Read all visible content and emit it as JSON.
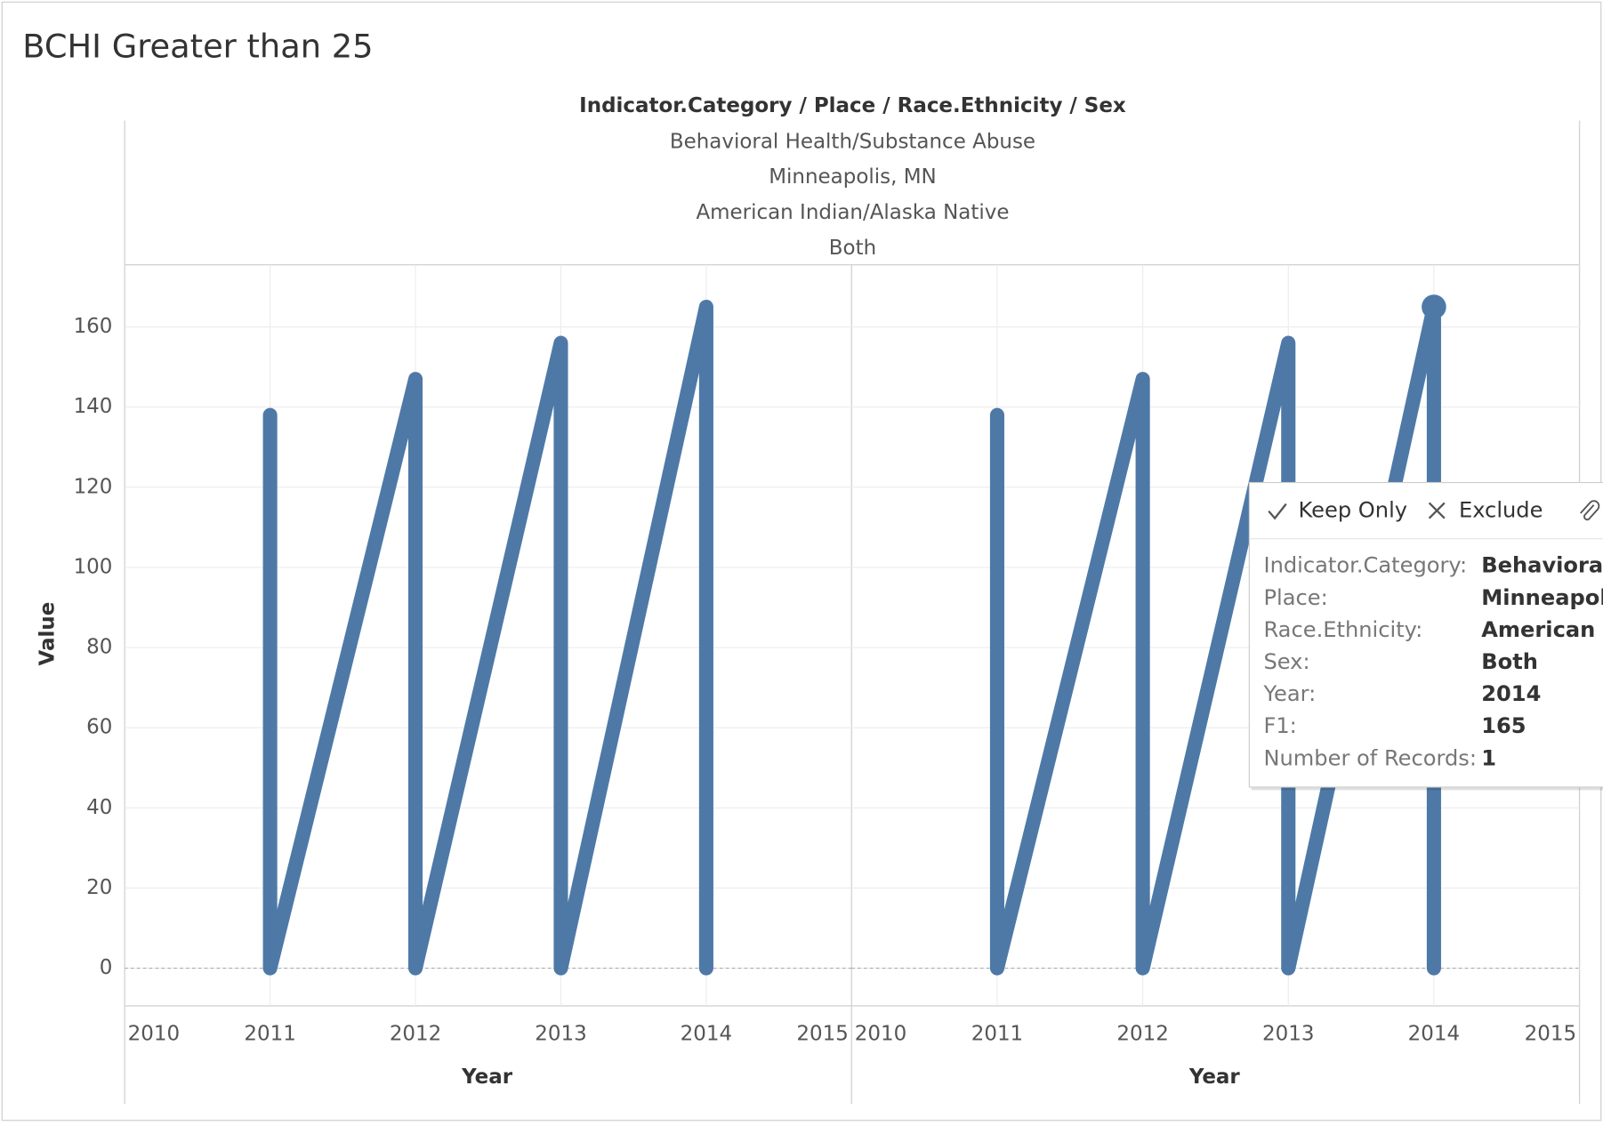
{
  "chart_data": {
    "type": "line",
    "title": "BCHI Greater than 25",
    "header_title": "Indicator.Category / Place / Race.Ethnicity / Sex",
    "header_values": [
      "Behavioral Health/Substance Abuse",
      "Minneapolis, MN",
      "American Indian/Alaska Native",
      "Both"
    ],
    "y_label": "Value",
    "x_label": "Year",
    "ylim": [
      -9.4,
      175.5
    ],
    "yticks": [
      0,
      20,
      40,
      60,
      80,
      100,
      120,
      140,
      160
    ],
    "xlim": [
      2010,
      2015
    ],
    "xticks": [
      2010,
      2011,
      2012,
      2013,
      2014,
      2015
    ],
    "grid": true,
    "zero_line": true,
    "color": "#4e79a7",
    "panels": [
      {
        "x": [
          2011,
          2011,
          2012,
          2012,
          2013,
          2013,
          2014,
          2014
        ],
        "values": [
          138,
          0,
          147,
          0,
          156,
          0,
          165,
          0
        ]
      },
      {
        "x": [
          2011,
          2011,
          2012,
          2012,
          2013,
          2013,
          2014,
          2014
        ],
        "values": [
          138,
          0,
          147,
          0,
          156,
          0,
          165,
          0
        ]
      }
    ]
  },
  "tooltip": {
    "actions": [
      "Keep Only",
      "Exclude"
    ],
    "rows": [
      {
        "label": "Indicator.Category:",
        "value": "Behavioral Health/Substance Abuse"
      },
      {
        "label": "Place:",
        "value": "Minneapolis, MN"
      },
      {
        "label": "Race.Ethnicity:",
        "value": "American Indian/Alaska Native"
      },
      {
        "label": "Sex:",
        "value": "Both"
      },
      {
        "label": "Year:",
        "value": 2014
      },
      {
        "label": "F1:",
        "value": 165
      },
      {
        "label": "Number of Records:",
        "value": 1
      }
    ]
  }
}
